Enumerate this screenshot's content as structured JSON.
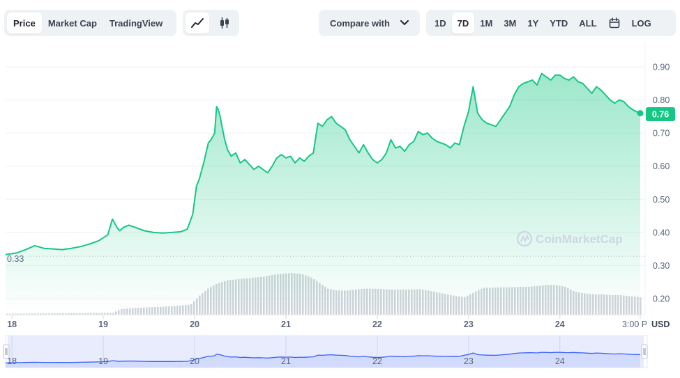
{
  "toolbar": {
    "chart_types": [
      "Price",
      "Market Cap",
      "TradingView"
    ],
    "active_type": "Price",
    "styles": [
      "line-chart-icon",
      "candlestick-icon"
    ],
    "active_style": "line-chart-icon",
    "compare_label": "Compare with",
    "ranges": [
      "1D",
      "7D",
      "1M",
      "3M",
      "1Y",
      "YTD",
      "ALL"
    ],
    "active_range": "7D",
    "log_label": "LOG",
    "calendar_icon": "calendar-icon"
  },
  "watermark": "CoinMarketCap",
  "colors": {
    "line": "#16c784",
    "volume": "#cfd4da",
    "navigator_line": "#3861fb",
    "navigator_fill": "#e8ecfd",
    "badge": "#16c784"
  },
  "chart_data": {
    "type": "area",
    "y_axis_ticks": [
      "0.90",
      "0.80",
      "0.70",
      "0.60",
      "0.50",
      "0.40",
      "0.30",
      "0.20"
    ],
    "ylim": [
      0.17,
      0.94
    ],
    "x_tick_labels": [
      "18",
      "19",
      "20",
      "21",
      "22",
      "23",
      "24",
      "3:00 P"
    ],
    "x_tick_positions": [
      0.0,
      1.0,
      2.0,
      3.0,
      4.0,
      5.0,
      6.0,
      6.88
    ],
    "xlim": [
      -0.07,
      6.88
    ],
    "y_unit": "USD",
    "start_price_label": "0.33",
    "start_price": 0.33,
    "current_price_label": "0.76",
    "current_price": 0.76,
    "price_series": {
      "x": [
        -0.07,
        0.05,
        0.15,
        0.25,
        0.35,
        0.45,
        0.55,
        0.65,
        0.75,
        0.85,
        0.95,
        1.05,
        1.1,
        1.15,
        1.18,
        1.22,
        1.28,
        1.35,
        1.45,
        1.55,
        1.65,
        1.75,
        1.85,
        1.92,
        1.98,
        2.02,
        2.05,
        2.1,
        2.15,
        2.18,
        2.22,
        2.24,
        2.26,
        2.28,
        2.3,
        2.33,
        2.36,
        2.4,
        2.45,
        2.5,
        2.55,
        2.6,
        2.65,
        2.7,
        2.75,
        2.8,
        2.85,
        2.9,
        2.95,
        3.0,
        3.05,
        3.1,
        3.15,
        3.2,
        3.25,
        3.3,
        3.35,
        3.4,
        3.45,
        3.5,
        3.55,
        3.6,
        3.65,
        3.7,
        3.75,
        3.8,
        3.85,
        3.9,
        3.95,
        4.0,
        4.05,
        4.1,
        4.15,
        4.2,
        4.25,
        4.3,
        4.35,
        4.4,
        4.45,
        4.5,
        4.55,
        4.6,
        4.65,
        4.7,
        4.75,
        4.8,
        4.85,
        4.9,
        4.95,
        5.0,
        5.05,
        5.1,
        5.15,
        5.2,
        5.25,
        5.3,
        5.35,
        5.4,
        5.45,
        5.5,
        5.55,
        5.6,
        5.65,
        5.7,
        5.75,
        5.8,
        5.85,
        5.9,
        5.95,
        6.0,
        6.05,
        6.1,
        6.15,
        6.2,
        6.25,
        6.3,
        6.35,
        6.4,
        6.45,
        6.5,
        6.55,
        6.6,
        6.65,
        6.7,
        6.75,
        6.8,
        6.85,
        6.88
      ],
      "y": [
        0.333,
        0.338,
        0.348,
        0.36,
        0.352,
        0.35,
        0.348,
        0.352,
        0.357,
        0.365,
        0.375,
        0.393,
        0.44,
        0.415,
        0.405,
        0.415,
        0.422,
        0.415,
        0.405,
        0.4,
        0.398,
        0.4,
        0.402,
        0.41,
        0.455,
        0.54,
        0.56,
        0.61,
        0.67,
        0.68,
        0.7,
        0.78,
        0.77,
        0.75,
        0.72,
        0.68,
        0.65,
        0.63,
        0.64,
        0.61,
        0.62,
        0.605,
        0.59,
        0.6,
        0.59,
        0.58,
        0.6,
        0.625,
        0.635,
        0.625,
        0.63,
        0.61,
        0.625,
        0.615,
        0.63,
        0.64,
        0.73,
        0.72,
        0.74,
        0.75,
        0.73,
        0.72,
        0.71,
        0.68,
        0.66,
        0.64,
        0.665,
        0.64,
        0.62,
        0.61,
        0.62,
        0.64,
        0.68,
        0.655,
        0.66,
        0.645,
        0.665,
        0.675,
        0.705,
        0.695,
        0.7,
        0.685,
        0.675,
        0.67,
        0.665,
        0.655,
        0.67,
        0.665,
        0.72,
        0.765,
        0.84,
        0.76,
        0.74,
        0.73,
        0.725,
        0.72,
        0.74,
        0.76,
        0.78,
        0.815,
        0.84,
        0.85,
        0.855,
        0.86,
        0.845,
        0.88,
        0.87,
        0.86,
        0.875,
        0.875,
        0.865,
        0.86,
        0.87,
        0.855,
        0.85,
        0.835,
        0.82,
        0.84,
        0.83,
        0.815,
        0.8,
        0.79,
        0.8,
        0.795,
        0.78,
        0.77,
        0.763,
        0.76
      ]
    },
    "volume_series": {
      "x": [
        -0.07,
        1.1,
        1.18,
        1.3,
        1.5,
        1.75,
        1.95,
        2.05,
        2.15,
        2.25,
        2.35,
        2.45,
        2.55,
        2.65,
        2.75,
        2.85,
        2.95,
        3.05,
        3.15,
        3.25,
        3.35,
        3.45,
        3.55,
        3.65,
        3.75,
        3.85,
        3.95,
        4.05,
        4.15,
        4.25,
        4.35,
        4.45,
        4.55,
        4.65,
        4.75,
        4.85,
        4.95,
        5.05,
        5.15,
        5.25,
        5.35,
        5.45,
        5.55,
        5.65,
        5.75,
        5.85,
        5.95,
        6.05,
        6.15,
        6.25,
        6.35,
        6.45,
        6.55,
        6.65,
        6.75,
        6.85,
        6.88
      ],
      "y": [
        0.002,
        0.004,
        0.012,
        0.014,
        0.016,
        0.018,
        0.022,
        0.042,
        0.058,
        0.068,
        0.074,
        0.076,
        0.078,
        0.08,
        0.082,
        0.086,
        0.088,
        0.09,
        0.088,
        0.082,
        0.07,
        0.056,
        0.052,
        0.052,
        0.054,
        0.056,
        0.056,
        0.055,
        0.054,
        0.054,
        0.054,
        0.055,
        0.052,
        0.048,
        0.044,
        0.04,
        0.038,
        0.048,
        0.058,
        0.058,
        0.059,
        0.059,
        0.06,
        0.06,
        0.062,
        0.064,
        0.064,
        0.06,
        0.05,
        0.046,
        0.044,
        0.044,
        0.042,
        0.042,
        0.04,
        0.038,
        0.037
      ]
    },
    "navigator": {
      "x_tick_labels": [
        "18",
        "19",
        "20",
        "21",
        "22",
        "23",
        "24"
      ],
      "x_tick_positions": [
        0.0,
        1.0,
        2.0,
        3.0,
        4.0,
        5.0,
        6.0
      ]
    }
  }
}
